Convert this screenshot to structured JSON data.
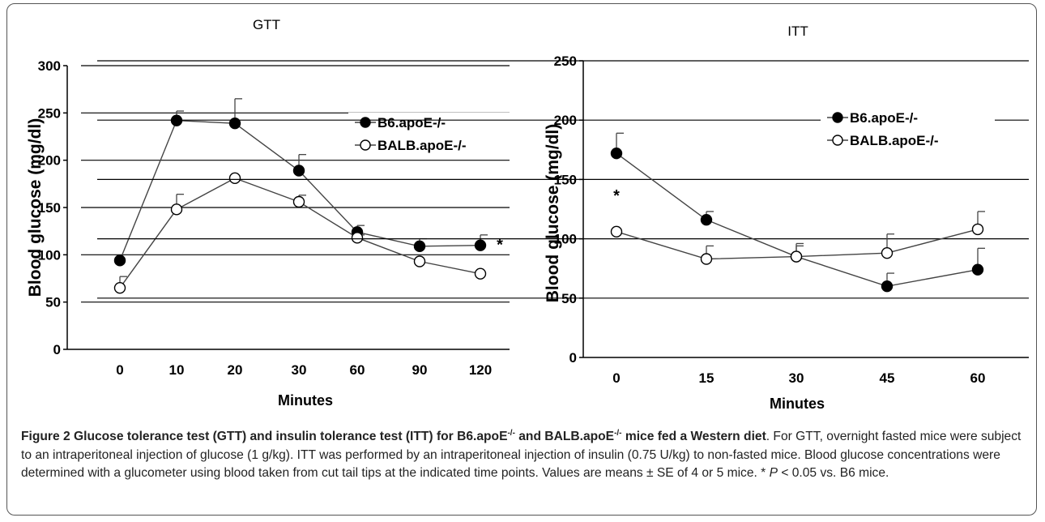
{
  "chart_data": [
    {
      "type": "line",
      "title": "GTT",
      "xlabel": "Minutes",
      "ylabel": "Blood glucose (mg/dl)",
      "categories": [
        "0",
        "10",
        "20",
        "30",
        "60",
        "90",
        "120"
      ],
      "ylim": [
        0,
        300
      ],
      "yticks": [
        0,
        50,
        100,
        150,
        200,
        250,
        300
      ],
      "grid": true,
      "legend": "top-right",
      "series": [
        {
          "name": "B6.apoE-/-",
          "marker": "filled",
          "values": [
            94,
            242,
            239,
            189,
            124,
            109,
            110
          ],
          "errors": [
            0,
            10,
            26,
            17,
            7,
            8,
            11
          ]
        },
        {
          "name": "BALB.apoE-/-",
          "marker": "open",
          "values": [
            65,
            148,
            181,
            156,
            118,
            93,
            80
          ],
          "errors": [
            12,
            16,
            0,
            7,
            3,
            0,
            0
          ]
        }
      ],
      "annotations": [
        {
          "text": "*",
          "category": "120"
        }
      ]
    },
    {
      "type": "line",
      "title": "ITT",
      "xlabel": "Minutes",
      "ylabel": "Blood glucose (mg/dl)",
      "categories": [
        "0",
        "15",
        "30",
        "45",
        "60"
      ],
      "ylim": [
        0,
        250
      ],
      "yticks": [
        0,
        50,
        100,
        150,
        200,
        250
      ],
      "grid": true,
      "legend": "top-right",
      "series": [
        {
          "name": "B6.apoE-/-",
          "marker": "filled",
          "values": [
            172,
            116,
            85,
            60,
            74
          ],
          "errors": [
            17,
            7,
            11,
            11,
            18
          ]
        },
        {
          "name": "BALB.apoE-/-",
          "marker": "open",
          "values": [
            106,
            83,
            85,
            88,
            108
          ],
          "errors": [
            0,
            11,
            9,
            16,
            15
          ]
        }
      ],
      "annotations": [
        {
          "text": "*",
          "category": "0"
        }
      ]
    }
  ],
  "caption": {
    "label": "Figure 2",
    "title_parts": [
      "Glucose tolerance test (GTT) and insulin tolerance test (ITT) for B6.apoE",
      "-/-",
      " and BALB.apoE",
      "-/-",
      " mice fed a Western diet"
    ],
    "body": ". For GTT, overnight fasted mice were subject to an intraperitoneal injection of glucose (1 g/kg). ITT was performed by an intraperitoneal injection of insulin (0.75 U/kg) to non-fasted mice. Blood glucose concentrations were determined with a glucometer using blood taken from cut tail tips at the indicated time points. Values are means ± SE of 4 or 5 mice. * ",
    "p_symbol": "P",
    "tail": " < 0.05 vs. B6 mice."
  },
  "colors": {
    "line": "#444444",
    "marker": "#000000",
    "grid": "#000000",
    "border": "#555555"
  }
}
